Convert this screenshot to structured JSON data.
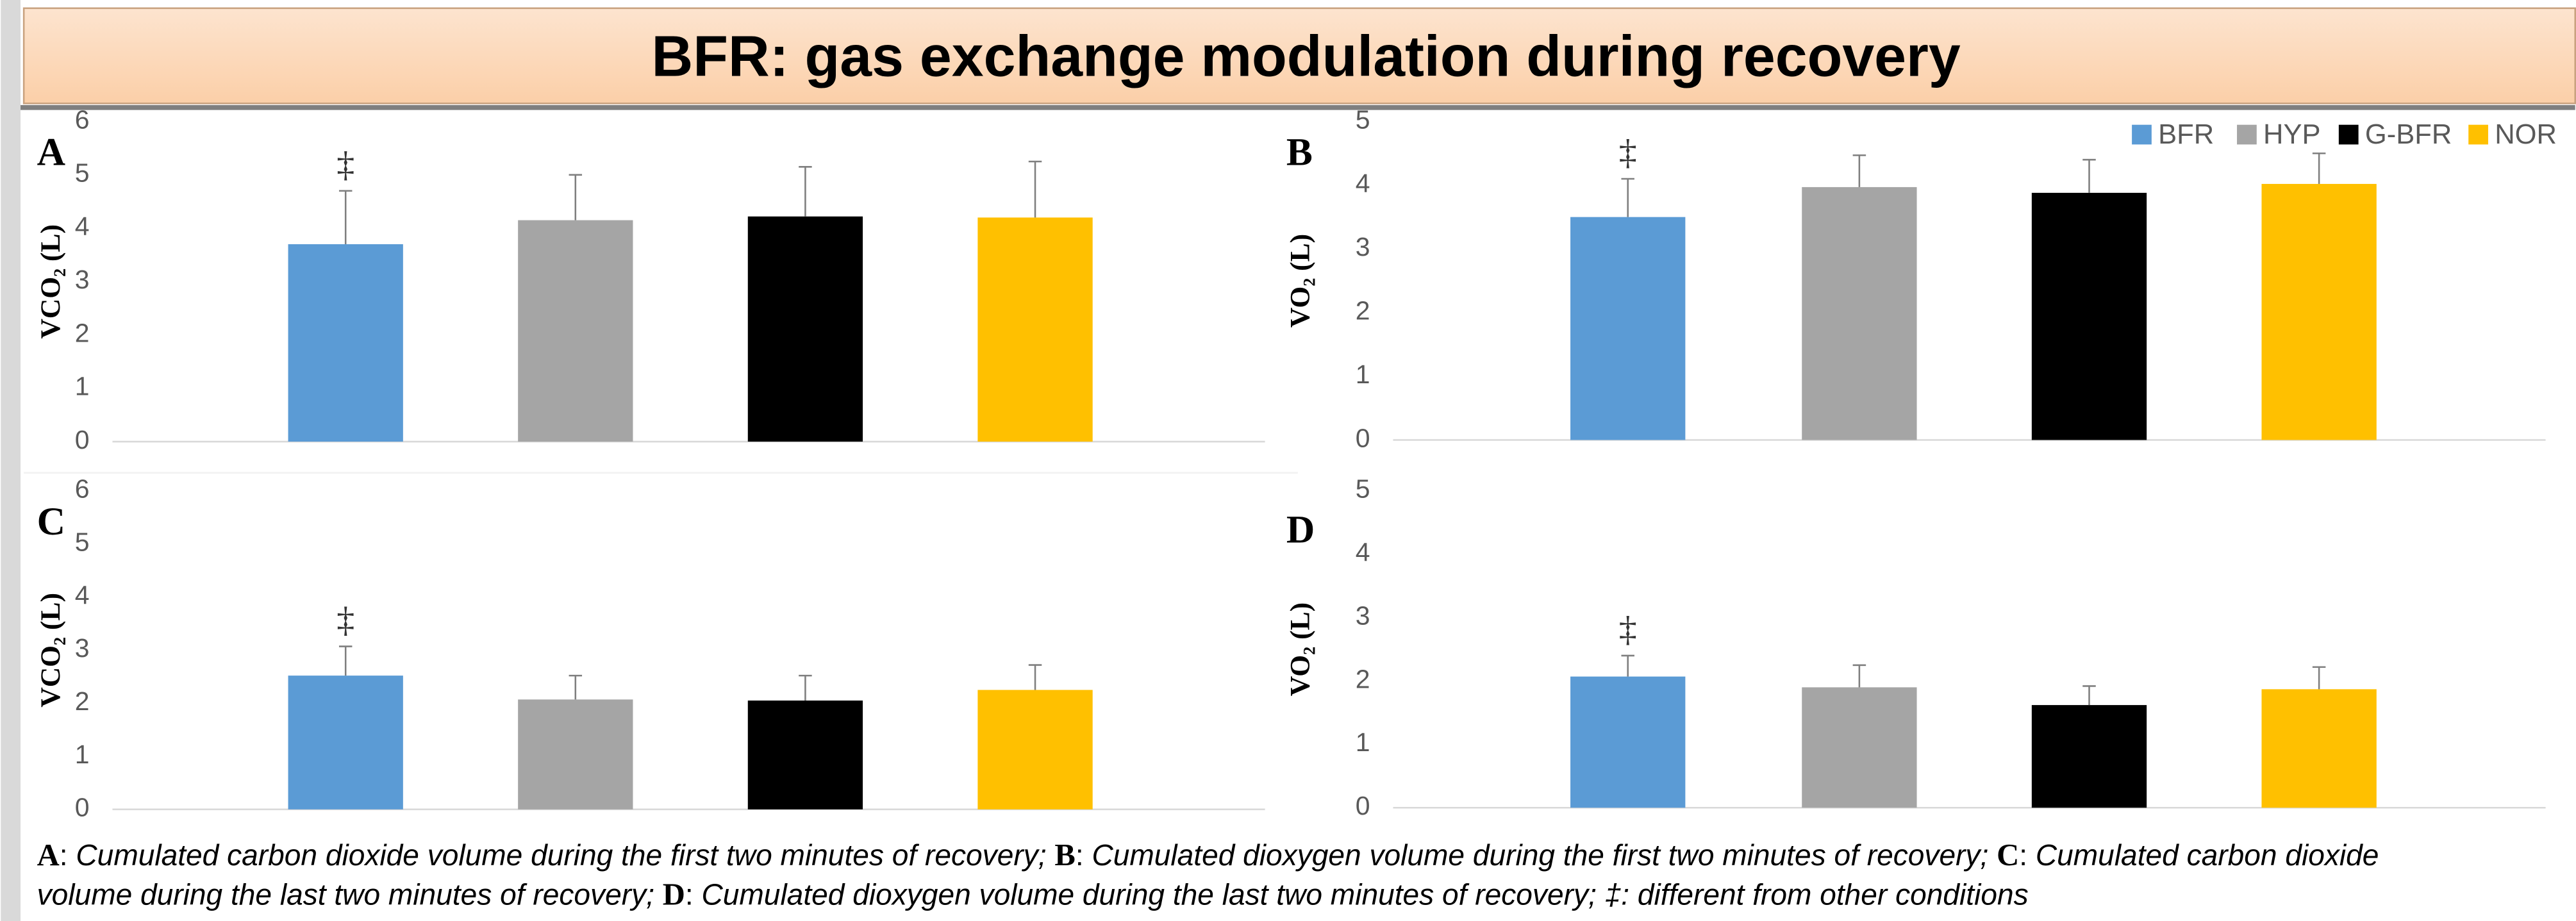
{
  "title": "BFR: gas exchange modulation during recovery",
  "legend": {
    "position": "top-right",
    "items": [
      {
        "name": "BFR",
        "color": "#5b9bd5"
      },
      {
        "name": "HYP",
        "color": "#a5a5a5"
      },
      {
        "name": "G-BFR",
        "color": "#000000"
      },
      {
        "name": "NOR",
        "color": "#ffc000"
      }
    ]
  },
  "chart_data": [
    {
      "type": "bar",
      "label": "A",
      "ylabel": "VCO₂ (L)",
      "ylim": [
        0,
        6
      ],
      "yticks": [
        0,
        1,
        2,
        3,
        4,
        5,
        6
      ],
      "values": [
        3.7,
        4.15,
        4.22,
        4.2
      ],
      "errors": [
        1.0,
        0.85,
        0.93,
        1.05
      ],
      "annotations": [
        "‡",
        null,
        null,
        null
      ]
    },
    {
      "type": "bar",
      "label": "B",
      "ylabel": "VO₂ (L)",
      "ylim": [
        0,
        5
      ],
      "yticks": [
        0,
        1,
        2,
        3,
        4,
        5
      ],
      "values": [
        3.5,
        3.97,
        3.88,
        4.02
      ],
      "errors": [
        0.6,
        0.5,
        0.52,
        0.48
      ],
      "annotations": [
        "‡",
        null,
        null,
        null
      ]
    },
    {
      "type": "bar",
      "label": "C",
      "ylabel": "VCO₂ (L)",
      "ylim": [
        0,
        6
      ],
      "yticks": [
        0,
        1,
        2,
        3,
        4,
        5,
        6
      ],
      "values": [
        2.52,
        2.07,
        2.05,
        2.25
      ],
      "errors": [
        0.55,
        0.45,
        0.47,
        0.47
      ],
      "annotations": [
        "‡",
        null,
        null,
        null
      ]
    },
    {
      "type": "bar",
      "label": "D",
      "ylabel": "VO₂ (L)",
      "ylim": [
        0,
        5
      ],
      "yticks": [
        0,
        1,
        2,
        3,
        4,
        5
      ],
      "values": [
        2.07,
        1.9,
        1.62,
        1.87
      ],
      "errors": [
        0.33,
        0.35,
        0.3,
        0.35
      ],
      "annotations": [
        "‡",
        null,
        null,
        null
      ]
    }
  ],
  "caption": [
    [
      {
        "text": "A",
        "style": "bold"
      },
      {
        "text": ": ",
        "style": "normal"
      },
      {
        "text": "Cumulated carbon dioxide volume during the first two minutes of recovery; ",
        "style": "italic"
      },
      {
        "text": "B",
        "style": "bold"
      },
      {
        "text": ": ",
        "style": "normal"
      },
      {
        "text": "Cumulated dioxygen volume during the first two minutes of recovery; ",
        "style": "italic"
      },
      {
        "text": "C",
        "style": "bold"
      },
      {
        "text": ": ",
        "style": "normal"
      },
      {
        "text": "Cumulated carbon dioxide",
        "style": "italic"
      }
    ],
    [
      {
        "text": "volume during the last two minutes of recovery; ",
        "style": "italic"
      },
      {
        "text": "D",
        "style": "bold"
      },
      {
        "text": ": ",
        "style": "normal"
      },
      {
        "text": "Cumulated dioxygen volume during the last two minutes of recovery; ‡: different from other conditions",
        "style": "italic"
      }
    ]
  ]
}
